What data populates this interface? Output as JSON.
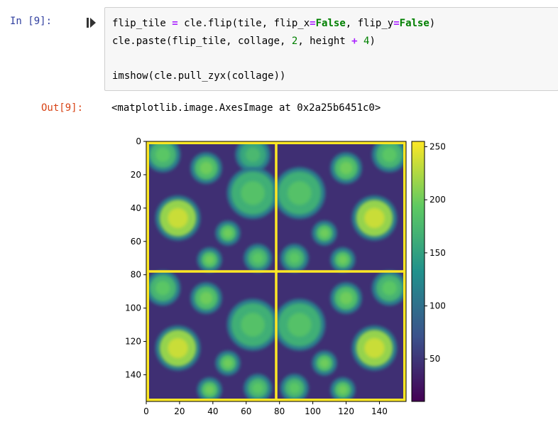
{
  "input_prompt": "In [9]:",
  "code_lines": [
    [
      "flip_tile ",
      "=",
      " cle.flip(tile, flip_x",
      "=",
      "False",
      ", flip_y",
      "=",
      "False",
      ")"
    ],
    [
      "cle.paste(flip_tile, collage, ",
      "2",
      ", height ",
      "+",
      " ",
      "4",
      ")"
    ],
    [
      ""
    ],
    [
      "imshow(cle.pull_zyx(collage))"
    ]
  ],
  "code_token_classes": [
    [
      "",
      "op",
      "",
      "op",
      "kw",
      "",
      "op",
      "kw",
      ""
    ],
    [
      "",
      "num",
      "",
      "op",
      "",
      "num",
      ""
    ],
    [
      ""
    ],
    [
      ""
    ]
  ],
  "output_prompt": "Out[9]:",
  "output_text": "<matplotlib.image.AxesImage at 0x2a25b6451c0>",
  "icons": {
    "run": "step-run-icon"
  },
  "chart_data": {
    "type": "heatmap",
    "title": "",
    "xlabel": "",
    "ylabel": "",
    "xticks": [
      0,
      20,
      40,
      60,
      80,
      100,
      120,
      140
    ],
    "yticks": [
      0,
      20,
      40,
      60,
      80,
      100,
      120,
      140
    ],
    "xlim": [
      0,
      156
    ],
    "ylim": [
      156,
      0
    ],
    "colorbar": {
      "ticks": [
        50,
        100,
        150,
        200,
        250
      ],
      "range": [
        10,
        255
      ],
      "colormap": "viridis"
    },
    "tile_separator_lines": {
      "x": 78,
      "y": 78,
      "value": 255
    },
    "blobs": [
      {
        "x": 10,
        "y": 8,
        "r": 8,
        "value": 190
      },
      {
        "x": 36,
        "y": 16,
        "r": 7,
        "value": 200
      },
      {
        "x": 64,
        "y": 8,
        "r": 8,
        "value": 175
      },
      {
        "x": 64,
        "y": 31,
        "r": 13,
        "value": 185
      },
      {
        "x": 19,
        "y": 46,
        "r": 11,
        "value": 235
      },
      {
        "x": 49,
        "y": 55,
        "r": 5,
        "value": 200
      },
      {
        "x": 67,
        "y": 70,
        "r": 6,
        "value": 190
      },
      {
        "x": 38,
        "y": 71,
        "r": 5,
        "value": 200
      },
      {
        "x": 92,
        "y": 31,
        "r": 13,
        "value": 185
      },
      {
        "x": 120,
        "y": 16,
        "r": 7,
        "value": 200
      },
      {
        "x": 146,
        "y": 8,
        "r": 8,
        "value": 190
      },
      {
        "x": 137,
        "y": 46,
        "r": 11,
        "value": 235
      },
      {
        "x": 107,
        "y": 55,
        "r": 5,
        "value": 200
      },
      {
        "x": 89,
        "y": 70,
        "r": 6,
        "value": 190
      },
      {
        "x": 118,
        "y": 71,
        "r": 5,
        "value": 200
      },
      {
        "x": 10,
        "y": 88,
        "r": 8,
        "value": 190
      },
      {
        "x": 36,
        "y": 94,
        "r": 7,
        "value": 200
      },
      {
        "x": 64,
        "y": 110,
        "r": 13,
        "value": 185
      },
      {
        "x": 19,
        "y": 124,
        "r": 11,
        "value": 235
      },
      {
        "x": 49,
        "y": 133,
        "r": 5,
        "value": 200
      },
      {
        "x": 67,
        "y": 148,
        "r": 6,
        "value": 190
      },
      {
        "x": 38,
        "y": 149,
        "r": 5,
        "value": 200
      },
      {
        "x": 92,
        "y": 110,
        "r": 13,
        "value": 185
      },
      {
        "x": 120,
        "y": 94,
        "r": 7,
        "value": 200
      },
      {
        "x": 146,
        "y": 88,
        "r": 8,
        "value": 190
      },
      {
        "x": 137,
        "y": 124,
        "r": 11,
        "value": 235
      },
      {
        "x": 107,
        "y": 133,
        "r": 5,
        "value": 200
      },
      {
        "x": 89,
        "y": 148,
        "r": 6,
        "value": 190
      },
      {
        "x": 118,
        "y": 149,
        "r": 5,
        "value": 200
      }
    ]
  }
}
